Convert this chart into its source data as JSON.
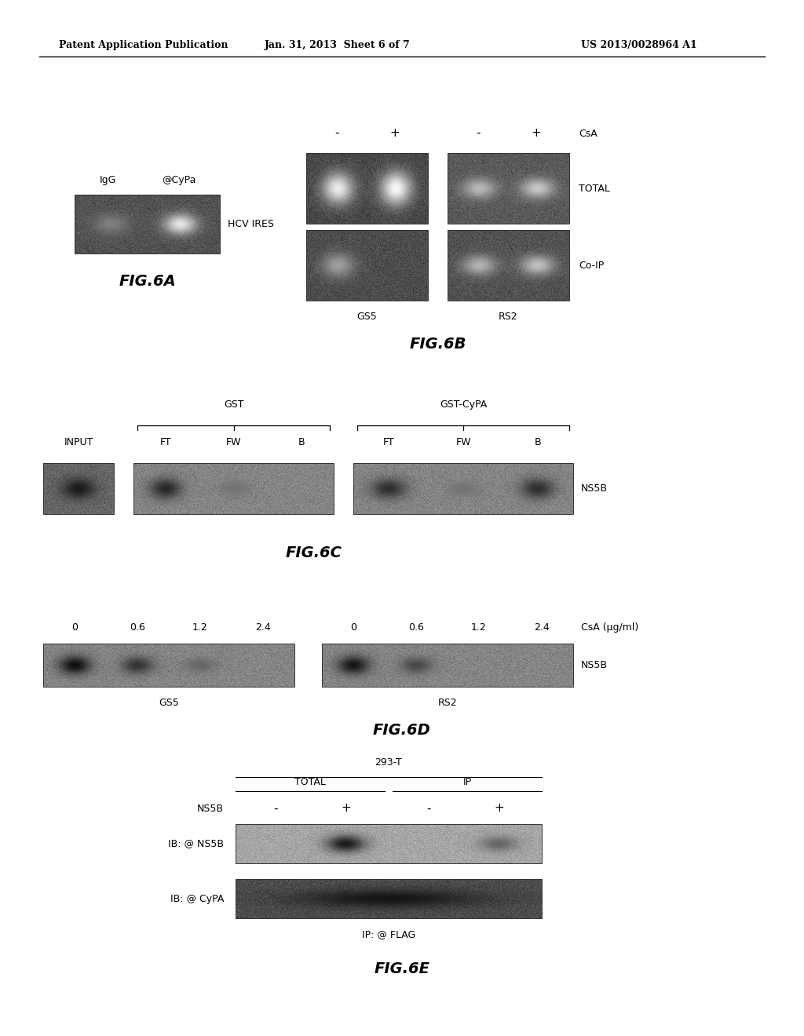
{
  "header_left": "Patent Application Publication",
  "header_center": "Jan. 31, 2013  Sheet 6 of 7",
  "header_right": "US 2013/0028964 A1",
  "background_color": "#ffffff"
}
